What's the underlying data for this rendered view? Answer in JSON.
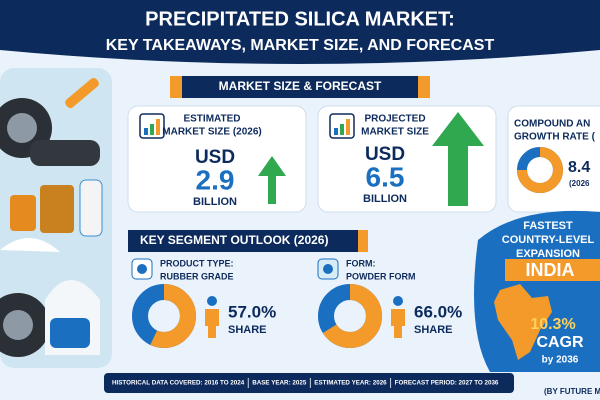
{
  "header": {
    "title_lines": [
      "PRECIPITATED SILICA MARKET:",
      "KEY TAKEAWAYS, MARKET SIZE, AND FORECAST"
    ]
  },
  "market_section": {
    "title": "MARKET SIZE & FORECAST",
    "cards": [
      {
        "label_lines": [
          "ESTIMATED",
          "MARKET SIZE (2026)"
        ],
        "currency": "USD",
        "value": 2.9,
        "unit": "BILLION"
      },
      {
        "label_lines": [
          "PROJECTED",
          "MARKET SIZE"
        ],
        "currency": "USD",
        "value": 6.5,
        "unit": "BILLION"
      },
      {
        "label_lines": [
          "COMPOUND AN",
          "GROWTH RATE ("
        ],
        "value": 8.4,
        "note": "(2026"
      }
    ]
  },
  "segment_section": {
    "title": "KEY SEGMENT OUTLOOK (2026)",
    "segments": [
      {
        "label_lines": [
          "PRODUCT TYPE:",
          "RUBBER GRADE"
        ],
        "share": 57.0,
        "share_label": "57.0%",
        "share_word": "SHARE"
      },
      {
        "label_lines": [
          "FORM:",
          "POWDER FORM"
        ],
        "share": 66.0,
        "share_label": "66.0%",
        "share_word": "SHARE"
      }
    ]
  },
  "country": {
    "lines": [
      "FASTEST",
      "COUNTRY-LEVEL",
      "EXPANSION"
    ],
    "name": "INDIA",
    "cagr": "10.3%",
    "cagr_word": "CAGR",
    "by": "by 2036"
  },
  "footer": {
    "items": [
      "HISTORICAL DATA COVERED: 2016 TO 2024",
      "BASE YEAR: 2025",
      "ESTIMATED YEAR: 2026",
      "FORECAST PERIOD: 2027 TO 2036"
    ]
  },
  "source": "(BY FUTURE MAR"
}
